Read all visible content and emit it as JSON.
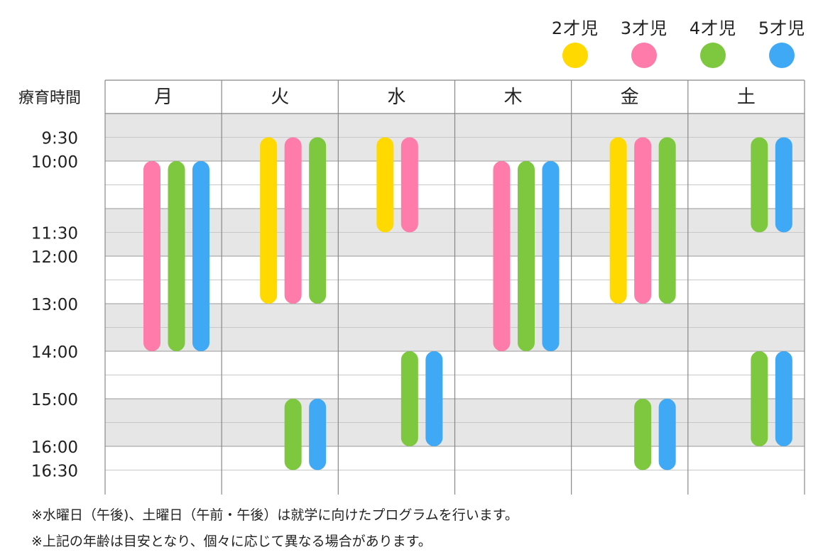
{
  "chart_data": {
    "type": "schedule",
    "corner_label": "療育時間",
    "days": [
      "月",
      "火",
      "水",
      "木",
      "金",
      "土"
    ],
    "time_labels": [
      "9:30",
      "10:00",
      "11:30",
      "12:00",
      "13:00",
      "14:00",
      "15:00",
      "16:00",
      "16:30"
    ],
    "groups": [
      {
        "name": "2才児",
        "color": "#FFD900"
      },
      {
        "name": "3才児",
        "color": "#FF7BA9"
      },
      {
        "name": "4才児",
        "color": "#7DC83E"
      },
      {
        "name": "5才児",
        "color": "#3FA9F5"
      }
    ],
    "sessions": [
      {
        "day": "月",
        "group": "3才児",
        "start": "10:00",
        "end": "14:00"
      },
      {
        "day": "月",
        "group": "4才児",
        "start": "10:00",
        "end": "14:00"
      },
      {
        "day": "月",
        "group": "5才児",
        "start": "10:00",
        "end": "14:00"
      },
      {
        "day": "火",
        "group": "2才児",
        "start": "9:30",
        "end": "13:00"
      },
      {
        "day": "火",
        "group": "3才児",
        "start": "9:30",
        "end": "13:00"
      },
      {
        "day": "火",
        "group": "4才児",
        "start": "9:30",
        "end": "13:00"
      },
      {
        "day": "火",
        "group": "4才児",
        "start": "15:00",
        "end": "16:30"
      },
      {
        "day": "火",
        "group": "5才児",
        "start": "15:00",
        "end": "16:30"
      },
      {
        "day": "水",
        "group": "2才児",
        "start": "9:30",
        "end": "11:30"
      },
      {
        "day": "水",
        "group": "3才児",
        "start": "9:30",
        "end": "11:30"
      },
      {
        "day": "水",
        "group": "4才児",
        "start": "14:00",
        "end": "16:00"
      },
      {
        "day": "水",
        "group": "5才児",
        "start": "14:00",
        "end": "16:00"
      },
      {
        "day": "木",
        "group": "3才児",
        "start": "10:00",
        "end": "14:00"
      },
      {
        "day": "木",
        "group": "4才児",
        "start": "10:00",
        "end": "14:00"
      },
      {
        "day": "木",
        "group": "5才児",
        "start": "10:00",
        "end": "14:00"
      },
      {
        "day": "金",
        "group": "2才児",
        "start": "9:30",
        "end": "13:00"
      },
      {
        "day": "金",
        "group": "3才児",
        "start": "9:30",
        "end": "13:00"
      },
      {
        "day": "金",
        "group": "4才児",
        "start": "9:30",
        "end": "13:00"
      },
      {
        "day": "金",
        "group": "4才児",
        "start": "15:00",
        "end": "16:30"
      },
      {
        "day": "金",
        "group": "5才児",
        "start": "15:00",
        "end": "16:30"
      },
      {
        "day": "土",
        "group": "4才児",
        "start": "9:30",
        "end": "11:30"
      },
      {
        "day": "土",
        "group": "5才児",
        "start": "9:30",
        "end": "11:30"
      },
      {
        "day": "土",
        "group": "4才児",
        "start": "14:00",
        "end": "16:00"
      },
      {
        "day": "土",
        "group": "5才児",
        "start": "14:00",
        "end": "16:00"
      }
    ],
    "shaded_hours": [
      "9:00-10:00",
      "11:00-12:00",
      "13:00-14:00",
      "15:00-16:00"
    ],
    "grid": true
  },
  "notes": [
    "※水曜日（午後)、土曜日（午前・午後）は就学に向けたプログラムを行います。",
    "※上記の年齢は目安となり、個々に応じて異なる場合があります。"
  ]
}
